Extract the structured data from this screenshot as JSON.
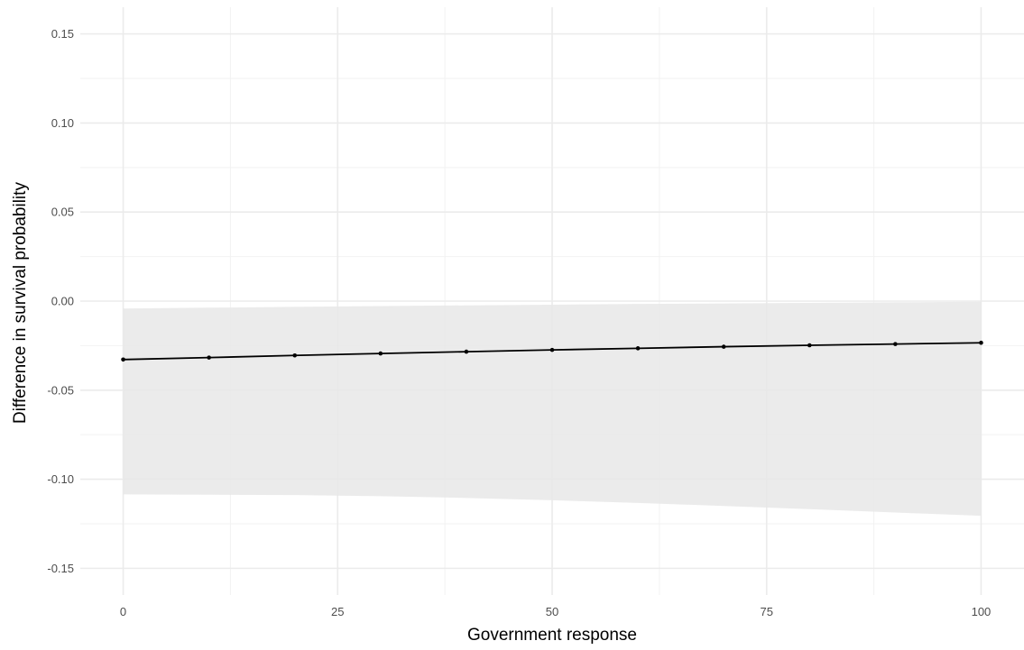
{
  "chart_data": {
    "type": "line",
    "title": "",
    "xlabel": "Government response",
    "ylabel": "Difference in survival probability",
    "xlim": [
      -5,
      105
    ],
    "ylim": [
      -0.165,
      0.165
    ],
    "x_major_ticks": [
      0,
      25,
      50,
      75,
      100
    ],
    "x_minor_ticks": [
      12.5,
      37.5,
      62.5,
      87.5
    ],
    "y_major_ticks": [
      -0.15,
      -0.1,
      -0.05,
      0.0,
      0.05,
      0.1,
      0.15
    ],
    "y_minor_ticks": [
      -0.125,
      -0.075,
      -0.025,
      0.025,
      0.075,
      0.125
    ],
    "x_tick_labels": [
      "0",
      "25",
      "50",
      "75",
      "100"
    ],
    "y_tick_labels": [
      "-0.15",
      "-0.10",
      "-0.05",
      "0.00",
      "0.05",
      "0.10",
      "0.15"
    ],
    "grid": true,
    "series": [
      {
        "x": [
          0,
          10,
          20,
          30,
          40,
          50,
          60,
          70,
          80,
          90,
          100
        ],
        "y": [
          -0.0328,
          -0.0317,
          -0.0305,
          -0.0294,
          -0.0284,
          -0.0274,
          -0.0265,
          -0.0256,
          -0.0248,
          -0.0241,
          -0.0234
        ],
        "ci_lower": [
          -0.1085,
          -0.1087,
          -0.1089,
          -0.1095,
          -0.1105,
          -0.1118,
          -0.1133,
          -0.115,
          -0.1168,
          -0.1187,
          -0.1205
        ],
        "ci_upper": [
          -0.0042,
          -0.0037,
          -0.0032,
          -0.0028,
          -0.0024,
          -0.002,
          -0.0016,
          -0.0013,
          -0.001,
          -0.0007,
          -0.0004
        ],
        "color": "#000000",
        "ribbon_color": "#e8e8e8"
      }
    ]
  }
}
